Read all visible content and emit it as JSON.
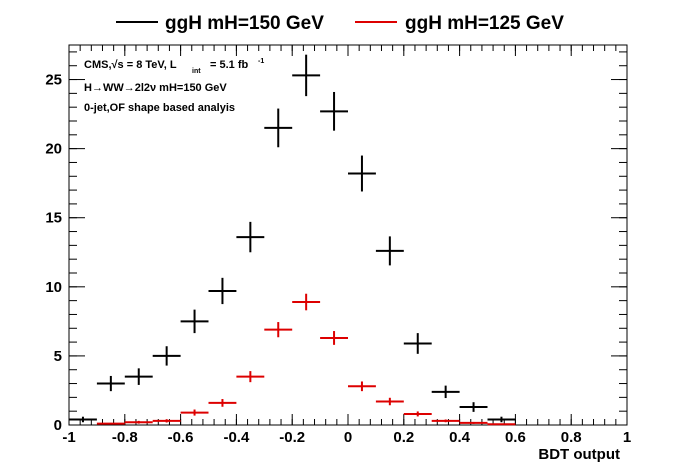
{
  "chart_data": {
    "type": "scatter",
    "xlabel": "BDT output",
    "ylabel": "",
    "xlim": [
      -1,
      1
    ],
    "ylim": [
      0,
      27.5
    ],
    "x_ticks": [
      "-1",
      "-0.8",
      "-0.6",
      "-0.4",
      "-0.2",
      "0",
      "0.2",
      "0.4",
      "0.6",
      "0.8",
      "1"
    ],
    "y_ticks": [
      "0",
      "5",
      "10",
      "15",
      "20",
      "25"
    ],
    "legend_position": "top",
    "annotations": [
      "CMS,√s = 8 TeV, L",
      "int",
      "= 5.1 fb",
      "-1",
      "H→WW→2l2ν mH=150 GeV",
      "0-jet,OF shape based analyis"
    ],
    "series": [
      {
        "name": "ggH mH=150 GeV",
        "color": "#000000",
        "x": [
          -0.95,
          -0.85,
          -0.75,
          -0.65,
          -0.55,
          -0.45,
          -0.35,
          -0.25,
          -0.15,
          -0.05,
          0.05,
          0.15,
          0.25,
          0.35,
          0.45,
          0.55
        ],
        "y": [
          0.4,
          3.0,
          3.5,
          5.0,
          7.5,
          9.7,
          13.6,
          21.5,
          25.3,
          22.7,
          18.2,
          12.6,
          5.9,
          2.4,
          1.3,
          0.4
        ],
        "yerr": [
          0.2,
          0.55,
          0.6,
          0.7,
          0.85,
          0.95,
          1.1,
          1.4,
          1.5,
          1.4,
          1.3,
          1.05,
          0.75,
          0.45,
          0.35,
          0.2
        ]
      },
      {
        "name": "ggH mH=125 GeV",
        "color": "#dd0000",
        "x": [
          -0.85,
          -0.75,
          -0.65,
          -0.55,
          -0.45,
          -0.35,
          -0.25,
          -0.15,
          -0.05,
          0.05,
          0.15,
          0.25,
          0.35,
          0.45,
          0.55
        ],
        "y": [
          0.1,
          0.2,
          0.3,
          0.9,
          1.6,
          3.5,
          6.9,
          8.9,
          6.3,
          2.8,
          1.7,
          0.8,
          0.3,
          0.15,
          0.05
        ],
        "yerr": [
          0.05,
          0.1,
          0.12,
          0.22,
          0.28,
          0.4,
          0.55,
          0.6,
          0.5,
          0.35,
          0.27,
          0.18,
          0.1,
          0.07,
          0.03
        ]
      }
    ]
  }
}
